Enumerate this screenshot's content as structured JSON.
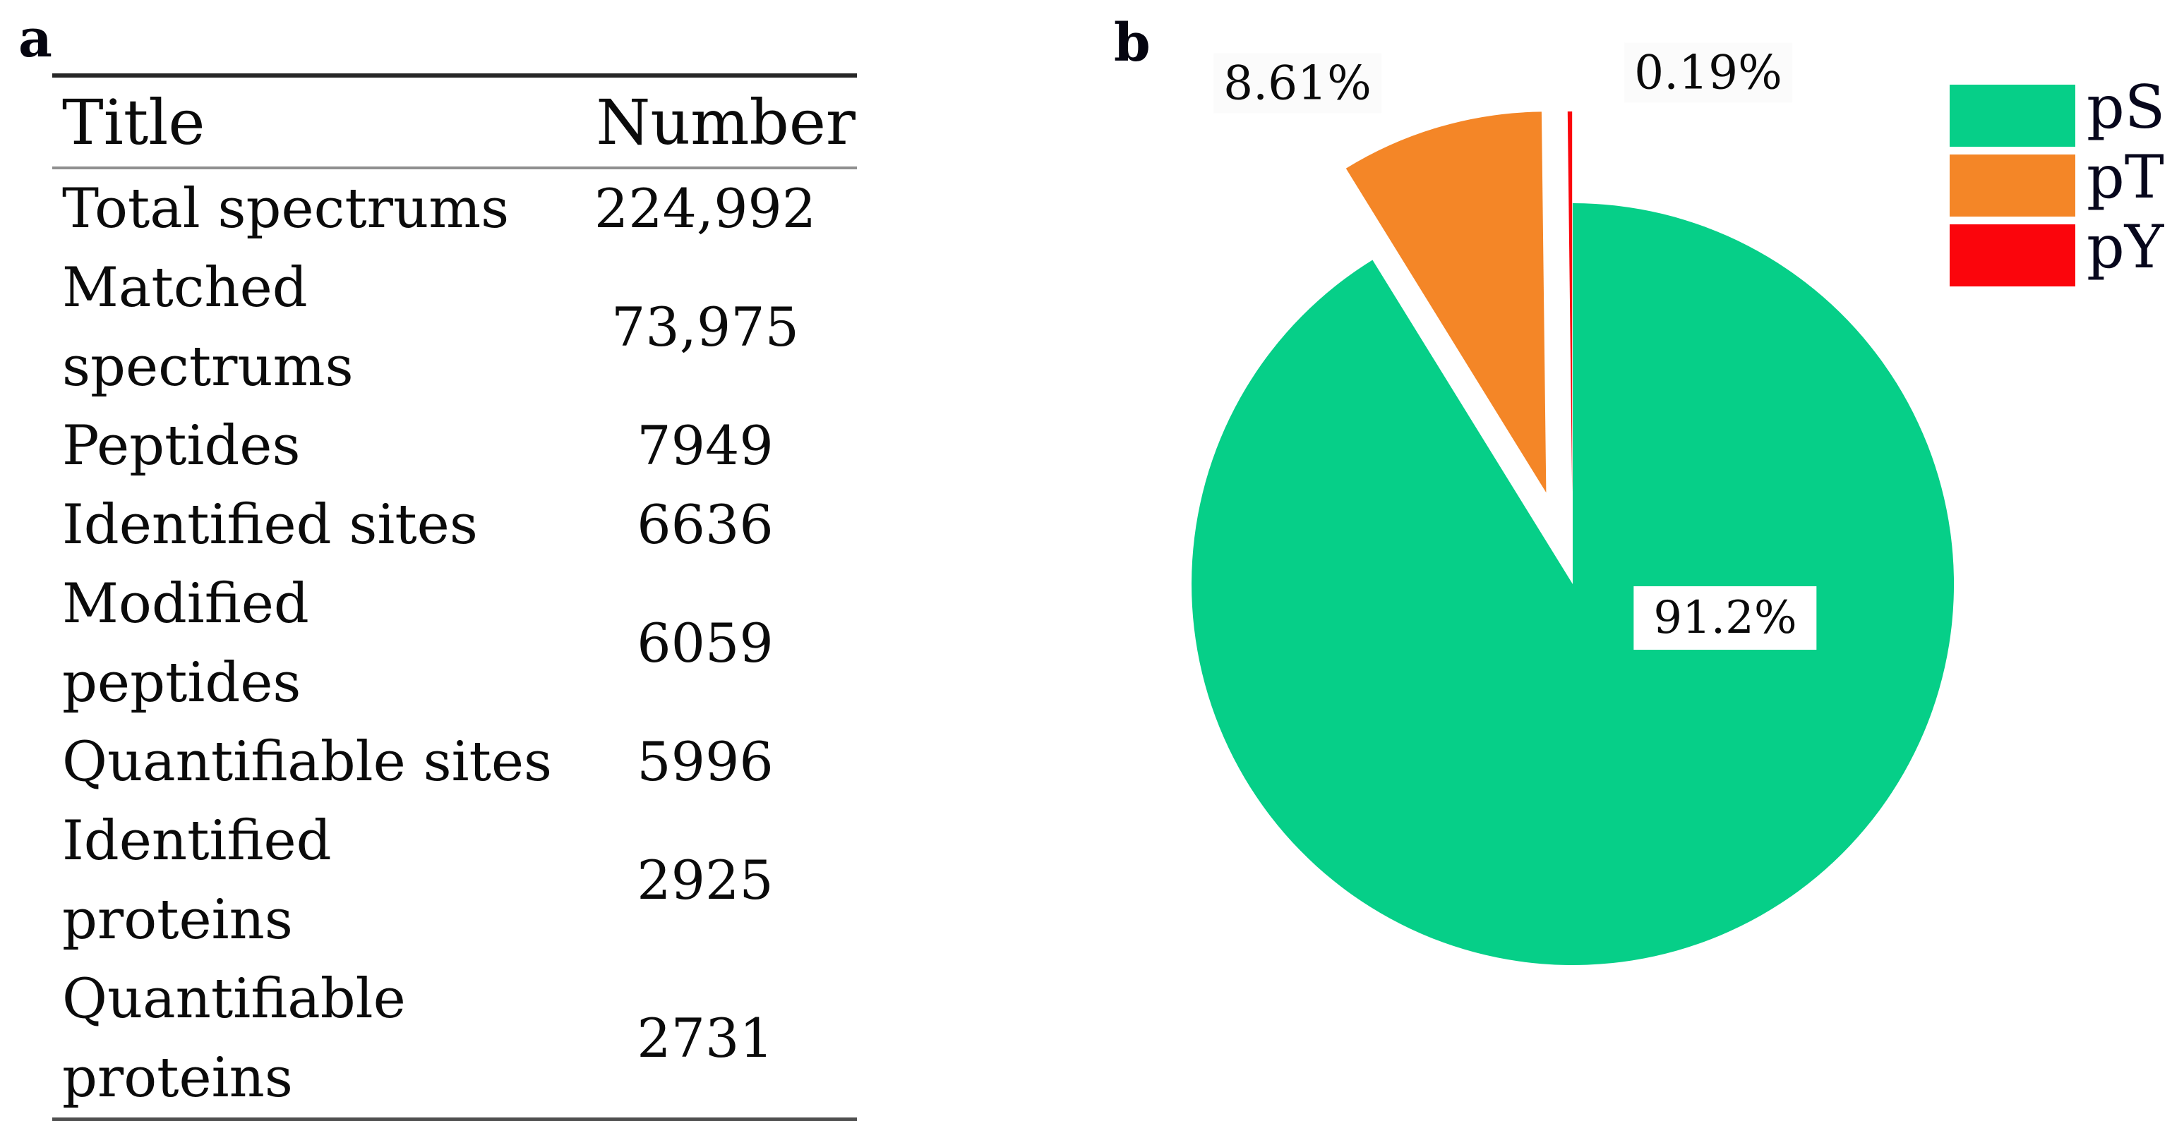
{
  "panels": {
    "a_label": "a",
    "b_label": "b"
  },
  "chart_data": [
    {
      "type": "table",
      "columns": [
        "Title",
        "Number"
      ],
      "rows": [
        {
          "title": "Total spectrums",
          "number": "224,992"
        },
        {
          "title": "Matched\nspectrums",
          "number": "73,975"
        },
        {
          "title": "Peptides",
          "number": "7949"
        },
        {
          "title": "Identified sites",
          "number": "6636"
        },
        {
          "title": "Modified peptides",
          "number": "6059"
        },
        {
          "title": "Quantifiable sites",
          "number": "5996"
        },
        {
          "title": "Identified proteins",
          "number": "2925"
        },
        {
          "title": "Quantifiable\nproteins",
          "number": "2731"
        }
      ]
    },
    {
      "type": "pie",
      "categories": [
        "pS",
        "pT",
        "pY"
      ],
      "values": [
        91.2,
        8.61,
        0.19
      ],
      "slice_labels": [
        "91.2%",
        "8.61%",
        "0.19%"
      ],
      "colors": [
        "#06cf88",
        "#f48627",
        "#fb050c"
      ],
      "start_angle": "12-oclock",
      "direction": "clockwise",
      "explode": [
        0,
        0.25,
        0.24
      ],
      "legend": [
        "pS",
        "pT",
        "pY"
      ],
      "legend_position": "upper-right"
    }
  ]
}
